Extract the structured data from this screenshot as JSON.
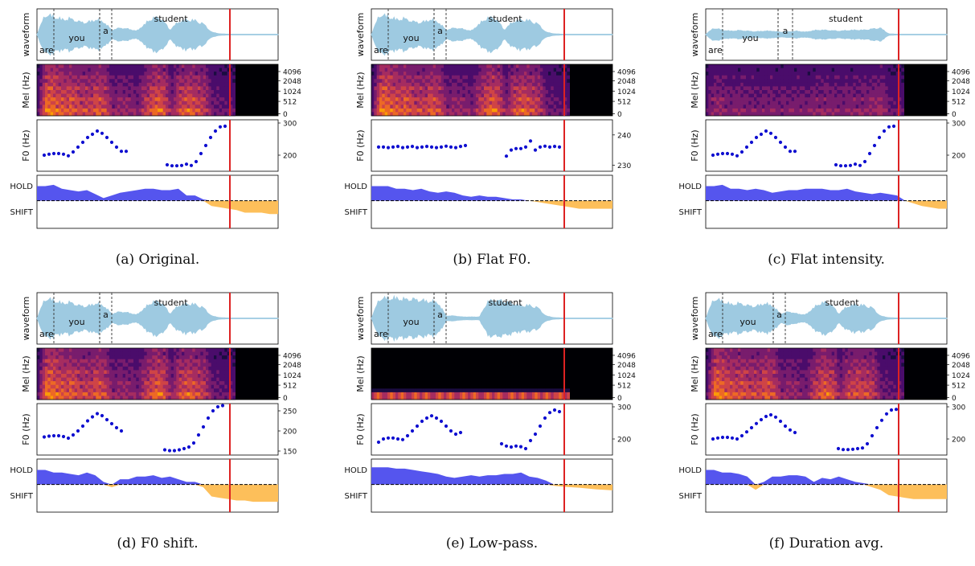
{
  "panel_labels": {
    "waveform": "waveform",
    "mel": "Mel (Hz)",
    "f0": "F0 (Hz)",
    "hold": "HOLD",
    "shift": "SHIFT"
  },
  "mel_ticks": [
    "4096",
    "2048",
    "1024",
    "512",
    "0"
  ],
  "colors": {
    "waveform": "#9ecae1",
    "f0_points": "#1010d0",
    "hold_fill": "#5555ee",
    "shift_fill": "#fdbf5a",
    "cursor": "#dd2222",
    "word_boundary": "#333333"
  },
  "chart_data": [
    {
      "type": "line",
      "caption": "(a) Original.",
      "words": [
        {
          "text": "are",
          "start": 0.0,
          "end": 0.07
        },
        {
          "text": "you",
          "start": 0.07,
          "end": 0.26
        },
        {
          "text": "a",
          "start": 0.26,
          "end": 0.31
        },
        {
          "text": "student",
          "start": 0.31,
          "end": 0.8
        }
      ],
      "waveform_envelope": [
        0.0,
        0.95,
        0.85,
        0.7,
        0.75,
        0.6,
        0.55,
        0.7,
        0.6,
        0.2,
        0.3,
        0.25,
        0.15,
        0.5,
        0.8,
        0.75,
        0.2,
        0.6,
        0.7,
        0.65,
        0.5,
        0.1,
        0.02,
        0.0,
        0.0,
        0.0,
        0.0,
        0.0,
        0.0,
        0.0
      ],
      "mel_energy_end": 0.82,
      "mel_lowpass": false,
      "cursor": 0.8,
      "f0_ticks": [
        200,
        300
      ],
      "f0_ylim": [
        150,
        310
      ],
      "f0_points": [
        [
          0.03,
          200
        ],
        [
          0.05,
          203
        ],
        [
          0.07,
          205
        ],
        [
          0.09,
          205
        ],
        [
          0.11,
          203
        ],
        [
          0.13,
          198
        ],
        [
          0.15,
          210
        ],
        [
          0.17,
          225
        ],
        [
          0.19,
          240
        ],
        [
          0.21,
          255
        ],
        [
          0.23,
          265
        ],
        [
          0.25,
          275
        ],
        [
          0.27,
          268
        ],
        [
          0.29,
          255
        ],
        [
          0.31,
          240
        ],
        [
          0.33,
          225
        ],
        [
          0.35,
          212
        ],
        [
          0.37,
          212
        ],
        [
          0.54,
          170
        ],
        [
          0.56,
          167
        ],
        [
          0.58,
          167
        ],
        [
          0.6,
          168
        ],
        [
          0.62,
          172
        ],
        [
          0.64,
          168
        ],
        [
          0.66,
          180
        ],
        [
          0.68,
          205
        ],
        [
          0.7,
          230
        ],
        [
          0.72,
          255
        ],
        [
          0.74,
          275
        ],
        [
          0.76,
          288
        ],
        [
          0.78,
          290
        ]
      ],
      "turn_values": [
        0.55,
        0.55,
        0.6,
        0.45,
        0.4,
        0.35,
        0.4,
        0.25,
        0.1,
        0.2,
        0.3,
        0.35,
        0.4,
        0.45,
        0.45,
        0.4,
        0.4,
        0.45,
        0.2,
        0.2,
        0.05,
        -0.2,
        -0.25,
        -0.3,
        -0.35,
        -0.45,
        -0.45,
        -0.45,
        -0.5,
        -0.5
      ]
    },
    {
      "type": "line",
      "caption": "(b) Flat F0.",
      "words": [
        {
          "text": "are",
          "start": 0.0,
          "end": 0.07
        },
        {
          "text": "you",
          "start": 0.07,
          "end": 0.26
        },
        {
          "text": "a",
          "start": 0.26,
          "end": 0.31
        },
        {
          "text": "student",
          "start": 0.31,
          "end": 0.8
        }
      ],
      "waveform_envelope": [
        0.0,
        0.95,
        0.85,
        0.7,
        0.75,
        0.6,
        0.55,
        0.7,
        0.6,
        0.2,
        0.3,
        0.25,
        0.15,
        0.5,
        0.8,
        0.75,
        0.2,
        0.6,
        0.7,
        0.65,
        0.5,
        0.1,
        0.02,
        0.0,
        0.0,
        0.0,
        0.0,
        0.0,
        0.0,
        0.0
      ],
      "mel_energy_end": 0.82,
      "mel_lowpass": false,
      "cursor": 0.8,
      "f0_ticks": [
        230,
        240
      ],
      "f0_ylim": [
        228,
        245
      ],
      "f0_points": [
        [
          0.03,
          236
        ],
        [
          0.05,
          236
        ],
        [
          0.07,
          235.8
        ],
        [
          0.09,
          236
        ],
        [
          0.11,
          236.2
        ],
        [
          0.13,
          235.8
        ],
        [
          0.15,
          236
        ],
        [
          0.17,
          236.2
        ],
        [
          0.19,
          235.8
        ],
        [
          0.21,
          236
        ],
        [
          0.23,
          236.2
        ],
        [
          0.25,
          236
        ],
        [
          0.27,
          235.8
        ],
        [
          0.29,
          236
        ],
        [
          0.31,
          236.3
        ],
        [
          0.33,
          236
        ],
        [
          0.35,
          235.8
        ],
        [
          0.37,
          236.2
        ],
        [
          0.39,
          236.5
        ],
        [
          0.56,
          233
        ],
        [
          0.58,
          235
        ],
        [
          0.6,
          235.5
        ],
        [
          0.62,
          235.5
        ],
        [
          0.64,
          236
        ],
        [
          0.66,
          238
        ],
        [
          0.68,
          235
        ],
        [
          0.7,
          236
        ],
        [
          0.72,
          236.3
        ],
        [
          0.74,
          236
        ],
        [
          0.76,
          236.2
        ],
        [
          0.78,
          236
        ]
      ],
      "turn_values": [
        0.55,
        0.55,
        0.55,
        0.45,
        0.45,
        0.4,
        0.45,
        0.35,
        0.3,
        0.35,
        0.3,
        0.2,
        0.15,
        0.2,
        0.15,
        0.15,
        0.1,
        0.05,
        0.05,
        0.0,
        -0.05,
        -0.1,
        -0.15,
        -0.2,
        -0.25,
        -0.3,
        -0.3,
        -0.3,
        -0.3,
        -0.3
      ]
    },
    {
      "type": "line",
      "caption": "(c) Flat intensity.",
      "words": [
        {
          "text": "are",
          "start": 0.0,
          "end": 0.07
        },
        {
          "text": "you",
          "start": 0.07,
          "end": 0.3
        },
        {
          "text": "a",
          "start": 0.3,
          "end": 0.36
        },
        {
          "text": "student",
          "start": 0.36,
          "end": 0.8
        }
      ],
      "waveform_envelope": [
        0.0,
        0.3,
        0.2,
        0.15,
        0.18,
        0.15,
        0.12,
        0.15,
        0.15,
        0.1,
        0.12,
        0.15,
        0.1,
        0.18,
        0.2,
        0.18,
        0.15,
        0.18,
        0.2,
        0.2,
        0.25,
        0.3,
        0.02,
        0.0,
        0.0,
        0.0,
        0.0,
        0.0,
        0.0,
        0.0
      ],
      "mel_energy_end": 0.82,
      "mel_lowpass": false,
      "cursor": 0.8,
      "f0_ticks": [
        200,
        300
      ],
      "f0_ylim": [
        150,
        310
      ],
      "f0_points": [
        [
          0.03,
          200
        ],
        [
          0.05,
          203
        ],
        [
          0.07,
          205
        ],
        [
          0.09,
          205
        ],
        [
          0.11,
          203
        ],
        [
          0.13,
          198
        ],
        [
          0.15,
          210
        ],
        [
          0.17,
          225
        ],
        [
          0.19,
          240
        ],
        [
          0.21,
          255
        ],
        [
          0.23,
          265
        ],
        [
          0.25,
          275
        ],
        [
          0.27,
          268
        ],
        [
          0.29,
          255
        ],
        [
          0.31,
          240
        ],
        [
          0.33,
          225
        ],
        [
          0.35,
          212
        ],
        [
          0.37,
          212
        ],
        [
          0.54,
          170
        ],
        [
          0.56,
          167
        ],
        [
          0.58,
          167
        ],
        [
          0.6,
          168
        ],
        [
          0.62,
          172
        ],
        [
          0.64,
          168
        ],
        [
          0.66,
          180
        ],
        [
          0.68,
          205
        ],
        [
          0.7,
          230
        ],
        [
          0.72,
          255
        ],
        [
          0.74,
          275
        ],
        [
          0.76,
          288
        ],
        [
          0.78,
          290
        ]
      ],
      "turn_values": [
        0.55,
        0.55,
        0.6,
        0.45,
        0.45,
        0.4,
        0.45,
        0.4,
        0.3,
        0.35,
        0.4,
        0.4,
        0.45,
        0.45,
        0.45,
        0.4,
        0.4,
        0.45,
        0.35,
        0.3,
        0.25,
        0.3,
        0.25,
        0.2,
        0.0,
        -0.1,
        -0.2,
        -0.25,
        -0.3,
        -0.3
      ]
    },
    {
      "type": "line",
      "caption": "(d) F0 shift.",
      "words": [
        {
          "text": "are",
          "start": 0.0,
          "end": 0.07
        },
        {
          "text": "you",
          "start": 0.07,
          "end": 0.26
        },
        {
          "text": "a",
          "start": 0.26,
          "end": 0.31
        },
        {
          "text": "student",
          "start": 0.31,
          "end": 0.8
        }
      ],
      "waveform_envelope": [
        0.0,
        0.95,
        0.85,
        0.7,
        0.75,
        0.6,
        0.55,
        0.7,
        0.6,
        0.2,
        0.3,
        0.25,
        0.15,
        0.5,
        0.8,
        0.75,
        0.2,
        0.6,
        0.7,
        0.65,
        0.5,
        0.1,
        0.02,
        0.0,
        0.0,
        0.0,
        0.0,
        0.0,
        0.0,
        0.0
      ],
      "mel_energy_end": 0.82,
      "mel_lowpass": false,
      "cursor": 0.8,
      "f0_ticks": [
        150,
        200,
        250
      ],
      "f0_ylim": [
        140,
        268
      ],
      "f0_points": [
        [
          0.03,
          185
        ],
        [
          0.05,
          187
        ],
        [
          0.07,
          188
        ],
        [
          0.09,
          188
        ],
        [
          0.11,
          186
        ],
        [
          0.13,
          182
        ],
        [
          0.15,
          190
        ],
        [
          0.17,
          200
        ],
        [
          0.19,
          212
        ],
        [
          0.21,
          225
        ],
        [
          0.23,
          235
        ],
        [
          0.25,
          243
        ],
        [
          0.27,
          238
        ],
        [
          0.29,
          228
        ],
        [
          0.31,
          218
        ],
        [
          0.33,
          208
        ],
        [
          0.35,
          200
        ],
        [
          0.53,
          153
        ],
        [
          0.55,
          151
        ],
        [
          0.57,
          151
        ],
        [
          0.59,
          153
        ],
        [
          0.61,
          156
        ],
        [
          0.63,
          160
        ],
        [
          0.65,
          170
        ],
        [
          0.67,
          190
        ],
        [
          0.69,
          210
        ],
        [
          0.71,
          232
        ],
        [
          0.73,
          250
        ],
        [
          0.75,
          260
        ],
        [
          0.77,
          263
        ]
      ],
      "turn_values": [
        0.55,
        0.55,
        0.45,
        0.45,
        0.4,
        0.35,
        0.45,
        0.35,
        0.1,
        -0.1,
        0.2,
        0.2,
        0.3,
        0.3,
        0.35,
        0.25,
        0.3,
        0.2,
        0.1,
        0.1,
        -0.1,
        -0.45,
        -0.5,
        -0.55,
        -0.6,
        -0.6,
        -0.65,
        -0.65,
        -0.65,
        -0.65
      ]
    },
    {
      "type": "line",
      "caption": "(e) Low-pass.",
      "words": [
        {
          "text": "are",
          "start": 0.0,
          "end": 0.07
        },
        {
          "text": "you",
          "start": 0.07,
          "end": 0.26
        },
        {
          "text": "a",
          "start": 0.26,
          "end": 0.31
        },
        {
          "text": "student",
          "start": 0.31,
          "end": 0.8
        }
      ],
      "waveform_envelope": [
        0.0,
        0.95,
        0.95,
        0.95,
        0.9,
        0.9,
        0.85,
        0.8,
        0.75,
        0.1,
        0.1,
        0.05,
        0.05,
        0.05,
        0.8,
        0.85,
        0.8,
        0.7,
        0.6,
        0.6,
        0.5,
        0.1,
        0.02,
        0.0,
        0.0,
        0.0,
        0.0,
        0.0,
        0.0,
        0.0
      ],
      "mel_energy_end": 0.82,
      "mel_lowpass": true,
      "cursor": 0.8,
      "f0_ticks": [
        200,
        300
      ],
      "f0_ylim": [
        150,
        310
      ],
      "f0_points": [
        [
          0.03,
          190
        ],
        [
          0.05,
          200
        ],
        [
          0.07,
          203
        ],
        [
          0.09,
          203
        ],
        [
          0.11,
          200
        ],
        [
          0.13,
          198
        ],
        [
          0.15,
          210
        ],
        [
          0.17,
          225
        ],
        [
          0.19,
          240
        ],
        [
          0.21,
          255
        ],
        [
          0.23,
          265
        ],
        [
          0.25,
          272
        ],
        [
          0.27,
          265
        ],
        [
          0.29,
          255
        ],
        [
          0.31,
          240
        ],
        [
          0.33,
          225
        ],
        [
          0.35,
          215
        ],
        [
          0.37,
          220
        ],
        [
          0.54,
          185
        ],
        [
          0.56,
          178
        ],
        [
          0.58,
          175
        ],
        [
          0.6,
          178
        ],
        [
          0.62,
          176
        ],
        [
          0.64,
          170
        ],
        [
          0.66,
          195
        ],
        [
          0.68,
          215
        ],
        [
          0.7,
          240
        ],
        [
          0.72,
          265
        ],
        [
          0.74,
          282
        ],
        [
          0.76,
          290
        ],
        [
          0.78,
          285
        ]
      ],
      "turn_values": [
        0.65,
        0.65,
        0.65,
        0.6,
        0.6,
        0.55,
        0.5,
        0.45,
        0.4,
        0.3,
        0.25,
        0.3,
        0.35,
        0.3,
        0.35,
        0.35,
        0.4,
        0.4,
        0.45,
        0.3,
        0.25,
        0.15,
        -0.05,
        -0.08,
        -0.1,
        -0.12,
        -0.15,
        -0.18,
        -0.2,
        -0.22
      ]
    },
    {
      "type": "line",
      "caption": "(f) Duration avg.",
      "words": [
        {
          "text": "are",
          "start": 0.0,
          "end": 0.07
        },
        {
          "text": "you",
          "start": 0.07,
          "end": 0.28
        },
        {
          "text": "a",
          "start": 0.28,
          "end": 0.33
        },
        {
          "text": "student",
          "start": 0.33,
          "end": 0.8
        }
      ],
      "waveform_envelope": [
        0.0,
        0.95,
        0.8,
        0.65,
        0.7,
        0.6,
        0.55,
        0.7,
        0.6,
        0.2,
        0.3,
        0.2,
        0.15,
        0.5,
        0.75,
        0.7,
        0.2,
        0.55,
        0.65,
        0.6,
        0.5,
        0.1,
        0.02,
        0.0,
        0.0,
        0.0,
        0.0,
        0.0,
        0.0,
        0.0
      ],
      "mel_energy_end": 0.82,
      "mel_lowpass": false,
      "cursor": 0.8,
      "f0_ticks": [
        200,
        300
      ],
      "f0_ylim": [
        150,
        310
      ],
      "f0_points": [
        [
          0.03,
          200
        ],
        [
          0.05,
          203
        ],
        [
          0.07,
          205
        ],
        [
          0.09,
          205
        ],
        [
          0.11,
          203
        ],
        [
          0.13,
          200
        ],
        [
          0.15,
          210
        ],
        [
          0.17,
          222
        ],
        [
          0.19,
          235
        ],
        [
          0.21,
          248
        ],
        [
          0.23,
          260
        ],
        [
          0.25,
          270
        ],
        [
          0.27,
          275
        ],
        [
          0.29,
          268
        ],
        [
          0.31,
          255
        ],
        [
          0.33,
          240
        ],
        [
          0.35,
          228
        ],
        [
          0.37,
          220
        ],
        [
          0.55,
          170
        ],
        [
          0.57,
          167
        ],
        [
          0.59,
          167
        ],
        [
          0.61,
          168
        ],
        [
          0.63,
          170
        ],
        [
          0.65,
          172
        ],
        [
          0.67,
          185
        ],
        [
          0.69,
          210
        ],
        [
          0.71,
          235
        ],
        [
          0.73,
          258
        ],
        [
          0.75,
          278
        ],
        [
          0.77,
          290
        ],
        [
          0.79,
          292
        ]
      ],
      "turn_values": [
        0.55,
        0.55,
        0.45,
        0.45,
        0.4,
        0.3,
        -0.2,
        0.1,
        0.3,
        0.3,
        0.35,
        0.35,
        0.3,
        0.1,
        0.25,
        0.2,
        0.3,
        0.2,
        0.1,
        0.05,
        -0.1,
        -0.2,
        -0.4,
        -0.45,
        -0.5,
        -0.55,
        -0.55,
        -0.55,
        -0.55,
        -0.55
      ]
    }
  ]
}
